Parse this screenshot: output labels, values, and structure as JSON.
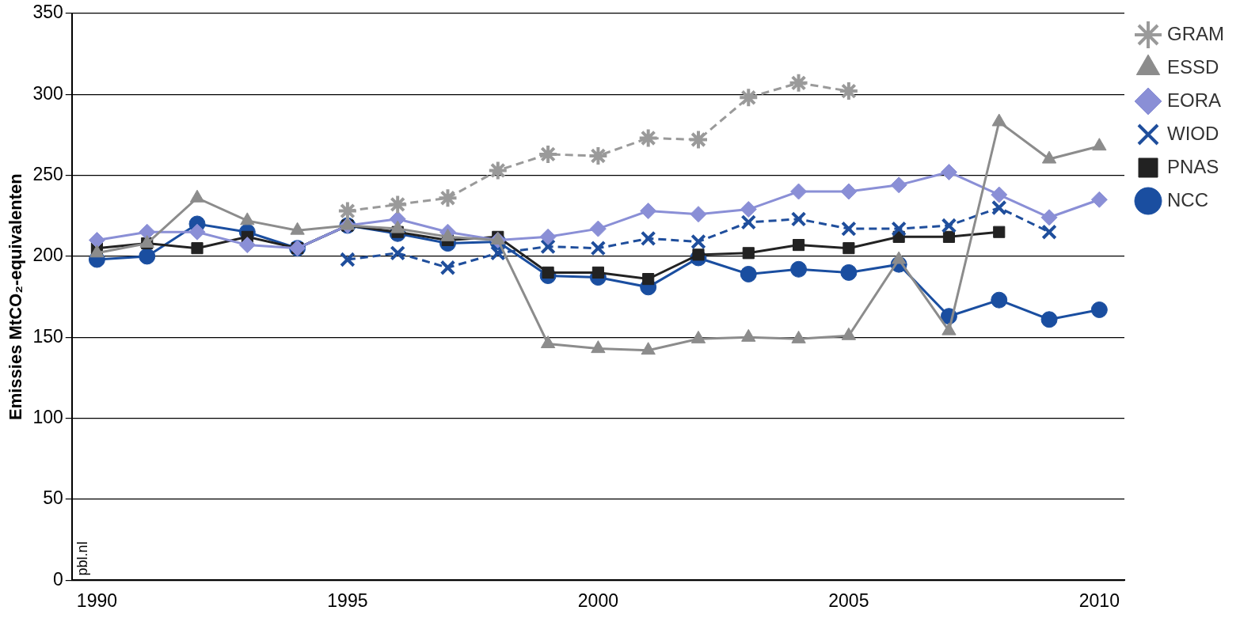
{
  "chart_data": {
    "type": "line",
    "y_label": "Emissies MtCO₂-equivalenten",
    "annotations": [
      "pbl.nl"
    ],
    "x": [
      1990,
      1991,
      1992,
      1993,
      1994,
      1995,
      1996,
      1997,
      1998,
      1999,
      2000,
      2001,
      2002,
      2003,
      2004,
      2005,
      2006,
      2007,
      2008,
      2009,
      2010
    ],
    "xlim": [
      1989.5,
      2010.5
    ],
    "xticks": [
      1990,
      1995,
      2000,
      2005,
      2010
    ],
    "ylim": [
      0,
      350
    ],
    "yticks": [
      0,
      50,
      100,
      150,
      200,
      250,
      300,
      350
    ],
    "grid": true,
    "legend": "right",
    "series": [
      {
        "name": "GRAM",
        "color": "#9a9a9a",
        "marker": "star",
        "line_style": "dashed",
        "values": [
          null,
          null,
          null,
          null,
          null,
          228,
          232,
          236,
          253,
          263,
          262,
          273,
          272,
          298,
          307,
          302,
          null,
          null,
          null,
          null,
          null
        ]
      },
      {
        "name": "ESSD",
        "color": "#8c8c8c",
        "marker": "triangle",
        "line_style": "solid",
        "values": [
          202,
          208,
          236,
          222,
          216,
          219,
          217,
          212,
          210,
          146,
          143,
          142,
          149,
          150,
          149,
          151,
          198,
          154,
          283,
          260,
          268
        ]
      },
      {
        "name": "EORA",
        "color": "#8a8fd6",
        "marker": "diamond",
        "line_style": "solid",
        "values": [
          210,
          215,
          215,
          207,
          205,
          219,
          223,
          215,
          210,
          212,
          217,
          228,
          226,
          229,
          240,
          240,
          244,
          252,
          238,
          224,
          235
        ]
      },
      {
        "name": "WIOD",
        "color": "#1f4e9c",
        "marker": "cross",
        "line_style": "dashed",
        "values": [
          null,
          null,
          null,
          null,
          null,
          198,
          202,
          193,
          202,
          206,
          205,
          211,
          209,
          221,
          223,
          217,
          217,
          219,
          230,
          215,
          null
        ]
      },
      {
        "name": "PNAS",
        "color": "#222222",
        "marker": "square",
        "line_style": "solid",
        "values": [
          205,
          208,
          205,
          212,
          205,
          219,
          215,
          210,
          212,
          190,
          190,
          186,
          201,
          202,
          207,
          205,
          212,
          212,
          215,
          null,
          null
        ]
      },
      {
        "name": "NCC",
        "color": "#1a4ea0",
        "marker": "circle",
        "line_style": "solid",
        "values": [
          198,
          200,
          220,
          215,
          205,
          219,
          214,
          208,
          209,
          188,
          187,
          181,
          199,
          189,
          192,
          190,
          195,
          163,
          173,
          161,
          167
        ]
      }
    ]
  }
}
